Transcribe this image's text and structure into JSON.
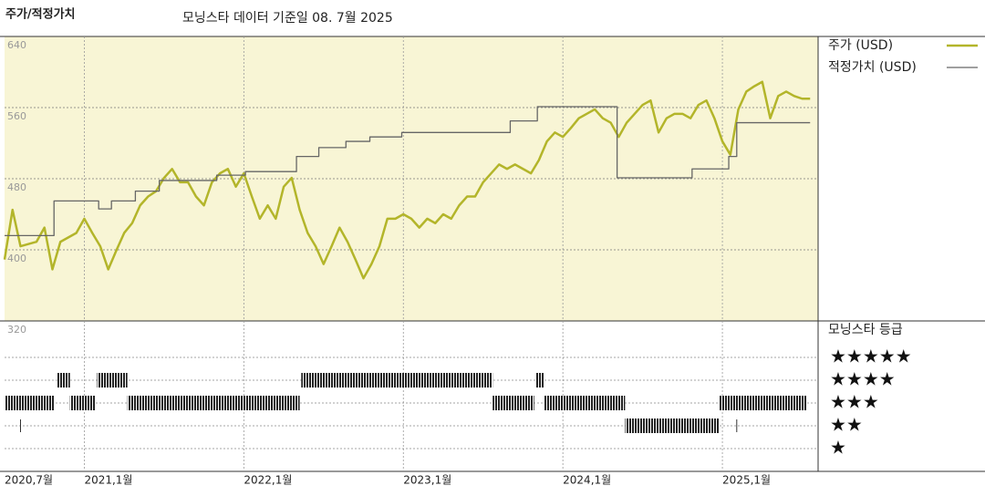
{
  "chart_data": {
    "type": "line",
    "title": "주가/적정가치",
    "subtitle": "모닝스타 데이터 기준일 08. 7월 2025",
    "xlim": [
      2020.5,
      2025.6
    ],
    "xticks": [
      {
        "value": 2020.5,
        "label": "2020,7월"
      },
      {
        "value": 2021,
        "label": "2021,1월"
      },
      {
        "value": 2022,
        "label": "2022,1월"
      },
      {
        "value": 2023,
        "label": "2023,1월"
      },
      {
        "value": 2024,
        "label": "2024,1월"
      },
      {
        "value": 2025,
        "label": "2025,1월"
      }
    ],
    "ylim": [
      320,
      640
    ],
    "yticks": [
      320,
      400,
      480,
      560,
      640
    ],
    "grid": true,
    "series": [
      {
        "name": "주가 (USD)",
        "color": "#b3b52a",
        "drawstyle": "line",
        "x": [
          2020.5,
          2020.55,
          2020.6,
          2020.7,
          2020.75,
          2020.8,
          2020.85,
          2020.95,
          2021.0,
          2021.05,
          2021.1,
          2021.15,
          2021.2,
          2021.25,
          2021.3,
          2021.35,
          2021.4,
          2021.45,
          2021.5,
          2021.55,
          2021.6,
          2021.65,
          2021.7,
          2021.75,
          2021.8,
          2021.85,
          2021.9,
          2021.95,
          2022.0,
          2022.05,
          2022.1,
          2022.15,
          2022.2,
          2022.25,
          2022.3,
          2022.35,
          2022.4,
          2022.45,
          2022.5,
          2022.55,
          2022.6,
          2022.65,
          2022.7,
          2022.75,
          2022.8,
          2022.85,
          2022.9,
          2022.95,
          2023.0,
          2023.05,
          2023.1,
          2023.15,
          2023.2,
          2023.25,
          2023.3,
          2023.35,
          2023.4,
          2023.45,
          2023.5,
          2023.55,
          2023.6,
          2023.65,
          2023.7,
          2023.75,
          2023.8,
          2023.85,
          2023.9,
          2023.95,
          2024.0,
          2024.05,
          2024.1,
          2024.15,
          2024.2,
          2024.25,
          2024.3,
          2024.35,
          2024.4,
          2024.45,
          2024.5,
          2024.55,
          2024.6,
          2024.65,
          2024.7,
          2024.75,
          2024.8,
          2024.85,
          2024.9,
          2024.95,
          2025.0,
          2025.05,
          2025.1,
          2025.15,
          2025.2,
          2025.25,
          2025.3,
          2025.35,
          2025.4,
          2025.45,
          2025.5,
          2025.55
        ],
        "values": [
          389,
          445,
          404,
          409,
          425,
          378,
          409,
          419,
          435,
          419,
          404,
          378,
          399,
          419,
          430,
          450,
          460,
          466,
          481,
          491,
          476,
          476,
          460,
          450,
          476,
          486,
          491,
          471,
          486,
          460,
          435,
          450,
          435,
          471,
          481,
          445,
          419,
          404,
          384,
          404,
          425,
          409,
          389,
          368,
          384,
          404,
          435,
          435,
          440,
          435,
          425,
          435,
          430,
          440,
          435,
          450,
          460,
          460,
          476,
          486,
          496,
          491,
          496,
          491,
          486,
          501,
          522,
          532,
          527,
          537,
          548,
          553,
          558,
          548,
          543,
          527,
          543,
          553,
          563,
          568,
          532,
          548,
          553,
          553,
          548,
          563,
          568,
          548,
          522,
          507,
          558,
          578,
          584,
          589,
          548,
          573,
          578,
          573,
          570,
          570
        ]
      },
      {
        "name": "적정가치 (USD)",
        "color": "#666666",
        "drawstyle": "steps",
        "x": [
          2020.5,
          2020.81,
          2021.09,
          2021.17,
          2021.32,
          2021.47,
          2021.83,
          2022.01,
          2022.33,
          2022.47,
          2022.64,
          2022.79,
          2022.99,
          2023.67,
          2023.84,
          2024.34,
          2024.81,
          2025.04,
          2025.09,
          2025.55
        ],
        "values": [
          416,
          455,
          446,
          455,
          466,
          478,
          484,
          488,
          505,
          515,
          522,
          527,
          532,
          545,
          561,
          481,
          491,
          505,
          543,
          543
        ]
      }
    ],
    "rating_title": "모닝스타 등급",
    "star_labels": [
      "★★★★★",
      "★★★★",
      "★★★",
      "★★",
      "★"
    ],
    "rating_periods": {
      "start": [
        2020.5,
        2020.6,
        2020.83,
        2020.91,
        2021.08,
        2021.27,
        2022.36,
        2023.56,
        2023.83,
        2023.88,
        2024.39,
        2024.98,
        2025.09
      ],
      "end": [
        2020.81,
        2020.6,
        2020.91,
        2021.07,
        2021.27,
        2022.35,
        2023.56,
        2023.82,
        2023.88,
        2024.39,
        2024.98,
        2025.53,
        2025.09
      ],
      "stars": [
        3,
        2,
        4,
        3,
        4,
        3,
        4,
        3,
        4,
        3,
        2,
        3,
        2
      ]
    }
  }
}
